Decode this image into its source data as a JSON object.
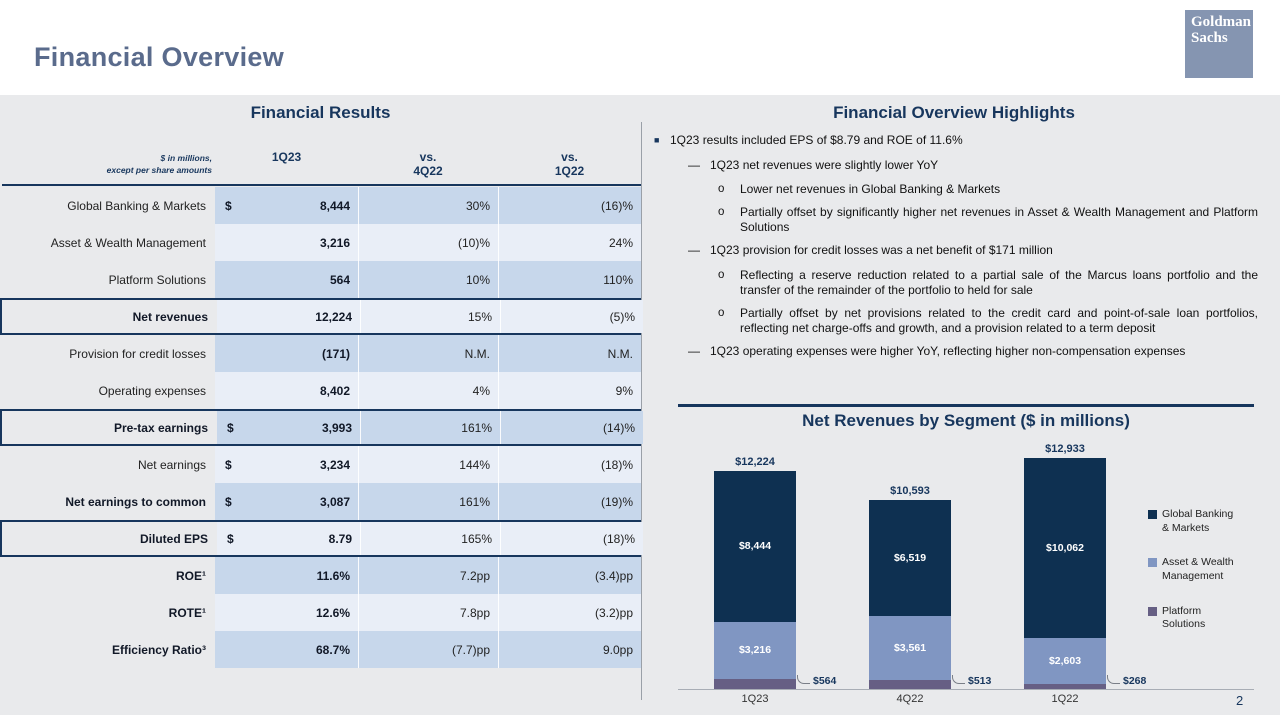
{
  "page": {
    "title": "Financial Overview",
    "page_number": "2"
  },
  "logo": {
    "line1": "Goldman",
    "line2": "Sachs"
  },
  "financial_results": {
    "title": "Financial Results",
    "note_line1": "$ in millions,",
    "note_line2": "except per share amounts",
    "columns": [
      {
        "prefix": "",
        "label": "1Q23"
      },
      {
        "prefix": "vs.",
        "label": "4Q22"
      },
      {
        "prefix": "vs.",
        "label": "1Q22"
      }
    ],
    "rows": [
      {
        "label": "Global Banking & Markets",
        "dollar": "$",
        "q1": "8,444",
        "vs4": "30%",
        "vs1": "(16)%",
        "bold": false,
        "boxed": false
      },
      {
        "label": "Asset & Wealth Management",
        "dollar": "",
        "q1": "3,216",
        "vs4": "(10)%",
        "vs1": "24%",
        "bold": false,
        "boxed": false
      },
      {
        "label": "Platform Solutions",
        "dollar": "",
        "q1": "564",
        "vs4": "10%",
        "vs1": "110%",
        "bold": false,
        "boxed": false
      },
      {
        "label": "Net revenues",
        "dollar": "",
        "q1": "12,224",
        "vs4": "15%",
        "vs1": "(5)%",
        "bold": true,
        "boxed": true
      },
      {
        "label": "Provision for credit losses",
        "dollar": "",
        "q1": "(171)",
        "vs4": "N.M.",
        "vs1": "N.M.",
        "bold": false,
        "boxed": false
      },
      {
        "label": "Operating expenses",
        "dollar": "",
        "q1": "8,402",
        "vs4": "4%",
        "vs1": "9%",
        "bold": false,
        "boxed": false
      },
      {
        "label": "Pre-tax earnings",
        "dollar": "$",
        "q1": "3,993",
        "vs4": "161%",
        "vs1": "(14)%",
        "bold": true,
        "boxed": true
      },
      {
        "label": "Net earnings",
        "dollar": "$",
        "q1": "3,234",
        "vs4": "144%",
        "vs1": "(18)%",
        "bold": false,
        "boxed": false
      },
      {
        "label": "Net earnings to common",
        "dollar": "$",
        "q1": "3,087",
        "vs4": "161%",
        "vs1": "(19)%",
        "bold": true,
        "boxed": false
      },
      {
        "label": "Diluted EPS",
        "dollar": "$",
        "q1": "8.79",
        "vs4": "165%",
        "vs1": "(18)%",
        "bold": true,
        "boxed": true
      },
      {
        "label": "ROE¹",
        "dollar": "",
        "q1": "11.6%",
        "vs4": "7.2pp",
        "vs1": "(3.4)pp",
        "bold": true,
        "boxed": false
      },
      {
        "label": "ROTE¹",
        "dollar": "",
        "q1": "12.6%",
        "vs4": "7.8pp",
        "vs1": "(3.2)pp",
        "bold": true,
        "boxed": false
      },
      {
        "label": "Efficiency Ratio³",
        "dollar": "",
        "q1": "68.7%",
        "vs4": "(7.7)pp",
        "vs1": "9.0pp",
        "bold": true,
        "boxed": false
      }
    ]
  },
  "highlights": {
    "title": "Financial Overview Highlights",
    "items": [
      {
        "level": 1,
        "text": "1Q23 results included EPS of $8.79 and ROE of 11.6%"
      },
      {
        "level": 2,
        "text": "1Q23 net revenues were slightly lower YoY"
      },
      {
        "level": 3,
        "text": "Lower net revenues in Global Banking & Markets"
      },
      {
        "level": 3,
        "text": "Partially offset by significantly higher net revenues in Asset & Wealth Management and Platform Solutions"
      },
      {
        "level": 2,
        "text": "1Q23 provision for credit losses was a net benefit of $171 million"
      },
      {
        "level": 3,
        "text": "Reflecting a reserve reduction related to a partial sale of the Marcus loans portfolio and the transfer of the remainder of the portfolio to held for sale"
      },
      {
        "level": 3,
        "text": "Partially offset by net provisions related to the credit card and point-of-sale loan portfolios, reflecting net charge-offs and growth, and a provision related to a term deposit"
      },
      {
        "level": 2,
        "text": "1Q23 operating expenses were higher YoY, reflecting higher non-compensation expenses"
      }
    ]
  },
  "chart_data": {
    "type": "bar",
    "stacked": true,
    "title": "Net Revenues by Segment ($ in millions)",
    "categories": [
      "1Q23",
      "4Q22",
      "1Q22"
    ],
    "series": [
      {
        "name": "Global Banking & Markets",
        "legend_label": "Global Banking\n& Markets",
        "color": "#0e3051",
        "values": [
          8444,
          6519,
          10062
        ],
        "value_labels": [
          "$8,444",
          "$6,519",
          "$10,062"
        ]
      },
      {
        "name": "Asset & Wealth Management",
        "legend_label": "Asset & Wealth\nManagement",
        "color": "#8096c2",
        "values": [
          3216,
          3561,
          2603
        ],
        "value_labels": [
          "$3,216",
          "$3,561",
          "$2,603"
        ]
      },
      {
        "name": "Platform Solutions",
        "legend_label": "Platform\nSolutions",
        "color": "#665f84",
        "values": [
          564,
          513,
          268
        ],
        "value_labels": [
          "$564",
          "$513",
          "$268"
        ]
      }
    ],
    "totals": [
      12224,
      10593,
      12933
    ],
    "total_labels": [
      "$12,224",
      "$10,593",
      "$12,933"
    ],
    "ymax": 14000,
    "ylim": [
      0,
      14000
    ],
    "grid": false,
    "legend_position": "right",
    "xlabel": "",
    "ylabel": ""
  }
}
